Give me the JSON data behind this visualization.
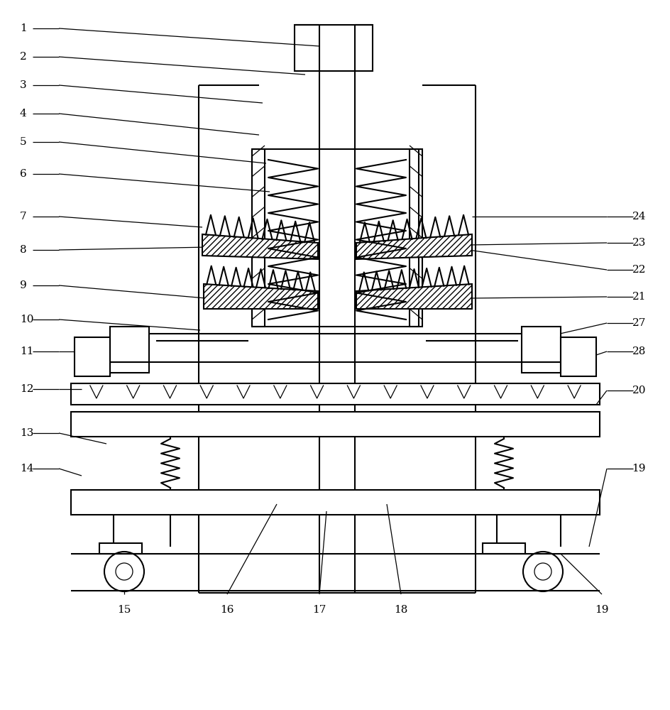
{
  "bg_color": "#ffffff",
  "lw": 1.5,
  "tlw": 0.9,
  "label_fs": 11
}
